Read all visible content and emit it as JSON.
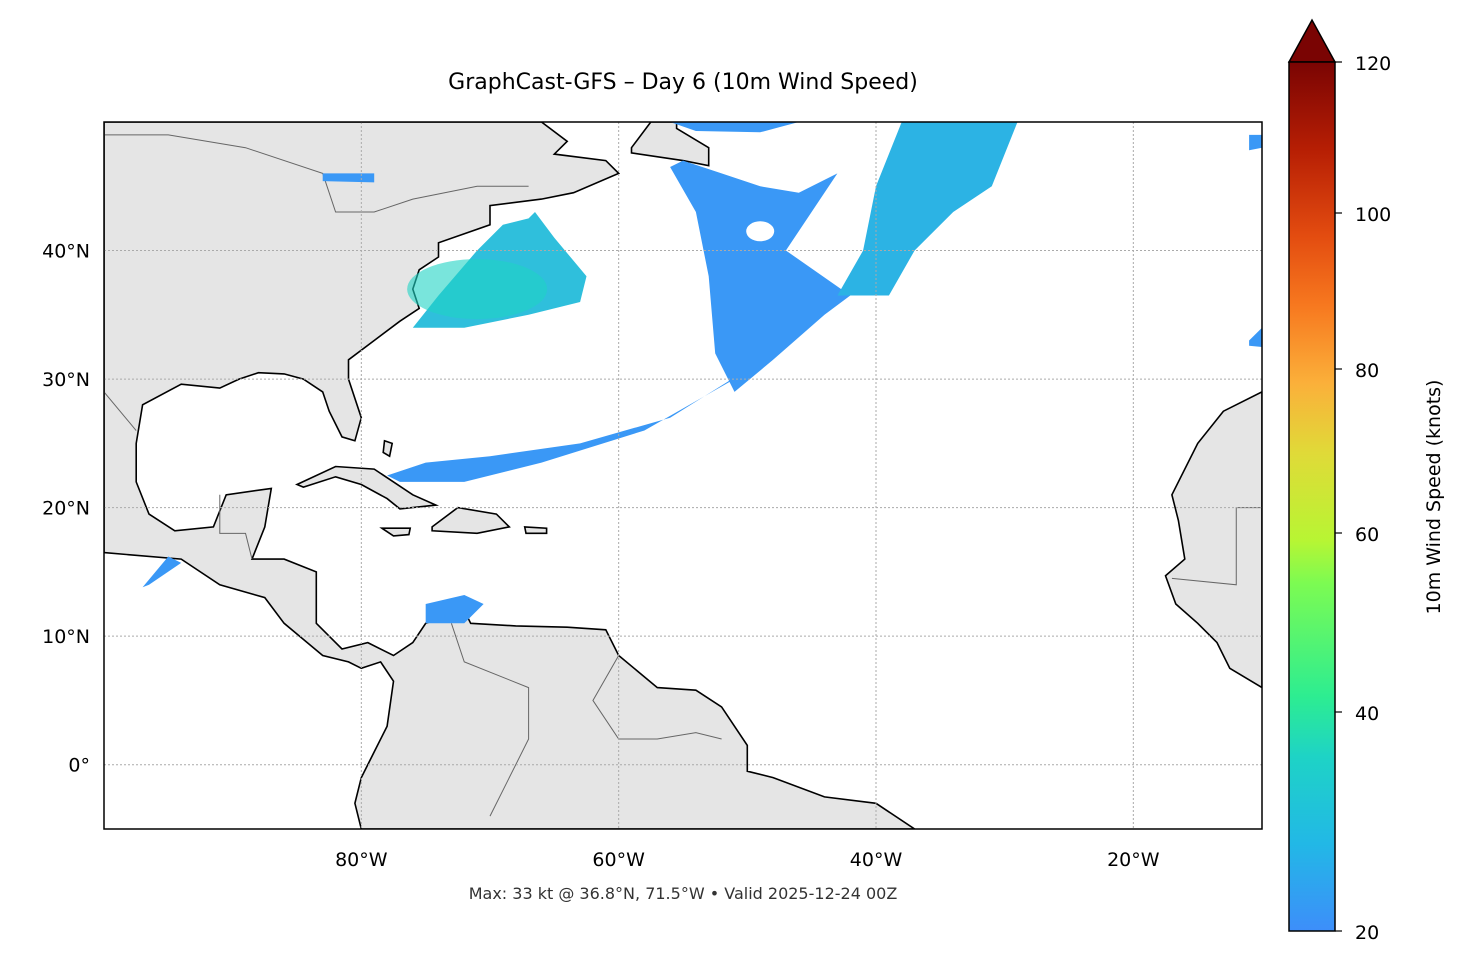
{
  "title": "GraphCast-GFS – Day 6 (10m Wind Speed)",
  "footer": "Max: 33 kt @ 36.8°N, 71.5°W • Valid 2025-12-24 00Z",
  "map": {
    "projection": "PlateCarree",
    "extent_lon": [
      -100,
      -10
    ],
    "extent_lat": [
      -5,
      50
    ],
    "land_color": "#e5e5e5",
    "coastline_color": "#000000",
    "border_color": "#666666",
    "gridlines": "dotted",
    "lon_ticks": [
      {
        "value": -80,
        "label": "80°W"
      },
      {
        "value": -60,
        "label": "60°W"
      },
      {
        "value": -40,
        "label": "40°W"
      },
      {
        "value": -20,
        "label": "20°W"
      }
    ],
    "lat_ticks": [
      {
        "value": 40,
        "label": "40°N"
      },
      {
        "value": 30,
        "label": "30°N"
      },
      {
        "value": 20,
        "label": "20°N"
      },
      {
        "value": 10,
        "label": "10°N"
      },
      {
        "value": 0,
        "label": "0°"
      }
    ],
    "max_wind": {
      "value_kt": 33,
      "lat": 36.8,
      "lon": -71.5
    }
  },
  "colorbar": {
    "label": "10m Wind Speed (knots)",
    "colormap": "turbo",
    "extend": "max",
    "range": [
      20,
      120
    ],
    "ticks": [
      {
        "value": 20,
        "label": "20"
      },
      {
        "value": 40,
        "label": "40"
      },
      {
        "value": 60,
        "label": "60"
      },
      {
        "value": 80,
        "label": "80"
      },
      {
        "value": 100,
        "label": "100"
      },
      {
        "value": 120,
        "label": "120"
      }
    ]
  }
}
